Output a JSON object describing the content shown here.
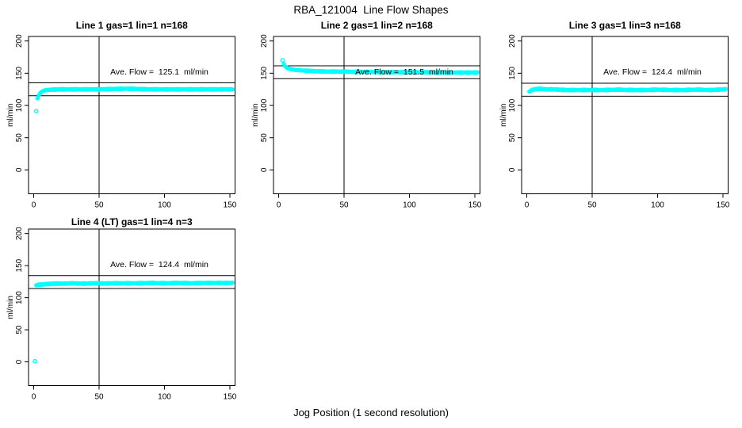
{
  "title": "RBA_121004  Line Flow Shapes",
  "xlabel": "Jog Position (1 second resolution)",
  "chart_data": {
    "type": "scatter",
    "layout": "4 panels in 2x3 grid (top row: 3 panels, bottom row: 1 panel)",
    "point_color": "#00FFFF",
    "axis_color": "#000000",
    "background": "#FFFFFF",
    "ylabel": "ml/min",
    "x_ticks": [
      0,
      50,
      100,
      150
    ],
    "y_ticks": [
      0,
      50,
      100,
      150,
      200
    ],
    "xlim": [
      -4,
      154.5
    ],
    "ylim": [
      -37,
      207
    ],
    "vline_x": 50,
    "panels": [
      {
        "title": "Line 1 gas=1 lin=1 n=168",
        "line": 1,
        "gas": 1,
        "lin": 1,
        "n": 168,
        "ave_flow": 125.1,
        "ave_flow_label": "Ave. Flow =  125.1  ml/min",
        "ref_upper": 135.1,
        "ref_lower": 115.1,
        "points": [
          [
            2,
            91
          ],
          [
            3,
            111
          ],
          [
            4,
            116
          ],
          [
            5,
            119
          ],
          [
            6,
            121
          ],
          [
            8,
            123
          ],
          [
            10,
            124
          ],
          [
            14,
            124.5
          ],
          [
            20,
            125
          ],
          [
            30,
            125
          ],
          [
            40,
            125
          ],
          [
            50,
            125
          ],
          [
            60,
            125.5
          ],
          [
            70,
            126
          ],
          [
            80,
            125.5
          ],
          [
            90,
            125
          ],
          [
            100,
            125
          ],
          [
            110,
            125
          ],
          [
            120,
            125
          ],
          [
            130,
            125
          ],
          [
            140,
            125
          ],
          [
            146,
            125
          ],
          [
            152,
            125
          ]
        ]
      },
      {
        "title": "Line 2 gas=1 lin=2 n=168",
        "line": 2,
        "gas": 1,
        "lin": 2,
        "n": 168,
        "ave_flow": 151.5,
        "ave_flow_label": "Ave. Flow =  151.5  ml/min",
        "ref_upper": 161.5,
        "ref_lower": 141.5,
        "points": [
          [
            3,
            170
          ],
          [
            4,
            164
          ],
          [
            5,
            161
          ],
          [
            6,
            159
          ],
          [
            8,
            157
          ],
          [
            10,
            156
          ],
          [
            13,
            155
          ],
          [
            16,
            154.5
          ],
          [
            20,
            154
          ],
          [
            25,
            153.5
          ],
          [
            30,
            153
          ],
          [
            40,
            152.5
          ],
          [
            50,
            152.5
          ],
          [
            60,
            152
          ],
          [
            70,
            152
          ],
          [
            80,
            151.5
          ],
          [
            90,
            151.5
          ],
          [
            100,
            151.5
          ],
          [
            110,
            151.5
          ],
          [
            120,
            151
          ],
          [
            130,
            151
          ],
          [
            140,
            151
          ],
          [
            146,
            151
          ],
          [
            152,
            151
          ]
        ]
      },
      {
        "title": "Line 3 gas=1 lin=3 n=168",
        "line": 3,
        "gas": 1,
        "lin": 3,
        "n": 168,
        "ave_flow": 124.4,
        "ave_flow_label": "Ave. Flow =  124.4  ml/min",
        "ref_upper": 134.4,
        "ref_lower": 114.4,
        "points": [
          [
            2,
            121
          ],
          [
            3,
            123
          ],
          [
            4,
            124
          ],
          [
            6,
            125
          ],
          [
            8,
            125.5
          ],
          [
            10,
            126
          ],
          [
            12,
            125.5
          ],
          [
            15,
            125
          ],
          [
            20,
            125
          ],
          [
            25,
            124.5
          ],
          [
            30,
            124
          ],
          [
            40,
            124
          ],
          [
            50,
            124
          ],
          [
            60,
            124
          ],
          [
            70,
            124.5
          ],
          [
            80,
            124
          ],
          [
            90,
            124
          ],
          [
            100,
            124.5
          ],
          [
            110,
            124
          ],
          [
            120,
            124
          ],
          [
            130,
            124.5
          ],
          [
            140,
            124
          ],
          [
            146,
            124.5
          ],
          [
            152,
            125
          ]
        ]
      },
      {
        "title": "Line 4 (LT) gas=1 lin=4 n=3",
        "line": 4,
        "gas": 1,
        "lin": 4,
        "n": 3,
        "ave_flow": 124.4,
        "ave_flow_label": "Ave. Flow =  124.4  ml/min",
        "ref_upper": 134.4,
        "ref_lower": 114.4,
        "points": [
          [
            1,
            1
          ],
          [
            2,
            119
          ],
          [
            3,
            120
          ],
          [
            5,
            120.5
          ],
          [
            8,
            121
          ],
          [
            12,
            121.5
          ],
          [
            16,
            122
          ],
          [
            20,
            122
          ],
          [
            25,
            122
          ],
          [
            30,
            122.5
          ],
          [
            35,
            122
          ],
          [
            40,
            122
          ],
          [
            45,
            122.5
          ],
          [
            50,
            122.5
          ],
          [
            55,
            122
          ],
          [
            60,
            122.5
          ],
          [
            70,
            122.5
          ],
          [
            80,
            122.5
          ],
          [
            90,
            123
          ],
          [
            100,
            122.5
          ],
          [
            110,
            123
          ],
          [
            120,
            122.5
          ],
          [
            130,
            123
          ],
          [
            140,
            123
          ],
          [
            146,
            123
          ],
          [
            152,
            123
          ]
        ]
      }
    ]
  }
}
